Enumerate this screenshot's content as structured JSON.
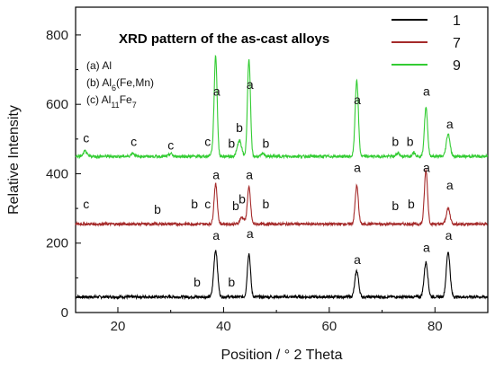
{
  "chart_data": {
    "type": "line",
    "title": "XRD pattern of the as-cast alloys",
    "xlabel": "Position / ° 2 Theta",
    "ylabel": "Relative Intensity",
    "xlim": [
      12,
      90
    ],
    "ylim": [
      0,
      880
    ],
    "xticks": [
      "20",
      "40",
      "60",
      "80"
    ],
    "yticks": [
      "0",
      "200",
      "400",
      "600",
      "800"
    ],
    "phase_legend": [
      {
        "prefix": "(a) ",
        "text": "Al"
      },
      {
        "prefix": "(b) ",
        "text": "Al6(Fe,Mn)",
        "parts": [
          [
            "Al",
            0
          ],
          [
            "6",
            -1
          ],
          [
            "(Fe,Mn)",
            0
          ]
        ]
      },
      {
        "prefix": "(c) ",
        "text": "Al11Fe7",
        "parts": [
          [
            "Al",
            0
          ],
          [
            "11",
            -1
          ],
          [
            "Fe",
            0
          ],
          [
            "7",
            -1
          ]
        ]
      }
    ],
    "legend_position": "top-right",
    "series": [
      {
        "name": "1",
        "color": "#000000",
        "baseline": 45,
        "noise": 4,
        "peaks": [
          {
            "x": 38.5,
            "height": 135,
            "width": 0.35
          },
          {
            "x": 44.8,
            "height": 125,
            "width": 0.3
          },
          {
            "x": 65.2,
            "height": 75,
            "width": 0.35
          },
          {
            "x": 78.3,
            "height": 100,
            "width": 0.35
          },
          {
            "x": 82.5,
            "height": 130,
            "width": 0.35
          }
        ],
        "labels": [
          {
            "text": "a",
            "x": 38.6,
            "y": 210
          },
          {
            "text": "a",
            "x": 45.0,
            "y": 215
          },
          {
            "text": "a",
            "x": 65.3,
            "y": 140
          },
          {
            "text": "a",
            "x": 78.4,
            "y": 175
          },
          {
            "text": "a",
            "x": 82.6,
            "y": 210
          },
          {
            "text": "b",
            "x": 35.0,
            "y": 75
          },
          {
            "text": "b",
            "x": 41.5,
            "y": 75
          }
        ]
      },
      {
        "name": "7",
        "color": "#a52a2a",
        "baseline": 255,
        "noise": 4,
        "peaks": [
          {
            "x": 38.5,
            "height": 115,
            "width": 0.3
          },
          {
            "x": 43.5,
            "height": 20,
            "width": 0.4
          },
          {
            "x": 44.8,
            "height": 105,
            "width": 0.3
          },
          {
            "x": 65.2,
            "height": 110,
            "width": 0.3
          },
          {
            "x": 78.3,
            "height": 155,
            "width": 0.3
          },
          {
            "x": 82.5,
            "height": 45,
            "width": 0.35
          }
        ],
        "labels": [
          {
            "text": "c",
            "x": 14.0,
            "y": 300
          },
          {
            "text": "b",
            "x": 27.5,
            "y": 285
          },
          {
            "text": "b",
            "x": 34.5,
            "y": 300
          },
          {
            "text": "c",
            "x": 37.0,
            "y": 300
          },
          {
            "text": "a",
            "x": 38.6,
            "y": 385
          },
          {
            "text": "b",
            "x": 42.3,
            "y": 295
          },
          {
            "text": "b",
            "x": 43.5,
            "y": 315
          },
          {
            "text": "a",
            "x": 44.9,
            "y": 385
          },
          {
            "text": "b",
            "x": 48.0,
            "y": 300
          },
          {
            "text": "a",
            "x": 65.3,
            "y": 405
          },
          {
            "text": "b",
            "x": 72.5,
            "y": 295
          },
          {
            "text": "b",
            "x": 75.5,
            "y": 300
          },
          {
            "text": "a",
            "x": 78.4,
            "y": 405
          },
          {
            "text": "a",
            "x": 82.8,
            "y": 355
          }
        ]
      },
      {
        "name": "9",
        "color": "#33cc33",
        "baseline": 450,
        "noise": 4,
        "peaks": [
          {
            "x": 13.8,
            "height": 15,
            "width": 0.3
          },
          {
            "x": 22.8,
            "height": 10,
            "width": 0.3
          },
          {
            "x": 30.0,
            "height": 8,
            "width": 0.3
          },
          {
            "x": 37.8,
            "height": 10,
            "width": 0.3
          },
          {
            "x": 38.5,
            "height": 290,
            "width": 0.28
          },
          {
            "x": 43.0,
            "height": 45,
            "width": 0.4
          },
          {
            "x": 44.8,
            "height": 280,
            "width": 0.28
          },
          {
            "x": 47.5,
            "height": 8,
            "width": 0.3
          },
          {
            "x": 65.2,
            "height": 220,
            "width": 0.3
          },
          {
            "x": 73.0,
            "height": 10,
            "width": 0.3
          },
          {
            "x": 76.0,
            "height": 12,
            "width": 0.3
          },
          {
            "x": 78.3,
            "height": 140,
            "width": 0.3
          },
          {
            "x": 82.5,
            "height": 65,
            "width": 0.35
          }
        ],
        "labels": [
          {
            "text": "c",
            "x": 14.0,
            "y": 490
          },
          {
            "text": "c",
            "x": 23.0,
            "y": 480
          },
          {
            "text": "c",
            "x": 30.0,
            "y": 470
          },
          {
            "text": "c",
            "x": 37.0,
            "y": 480
          },
          {
            "text": "a",
            "x": 38.7,
            "y": 625
          },
          {
            "text": "b",
            "x": 41.5,
            "y": 475
          },
          {
            "text": "b",
            "x": 43.0,
            "y": 520
          },
          {
            "text": "a",
            "x": 45.0,
            "y": 645
          },
          {
            "text": "b",
            "x": 48.0,
            "y": 475
          },
          {
            "text": "a",
            "x": 65.3,
            "y": 600
          },
          {
            "text": "b",
            "x": 72.5,
            "y": 480
          },
          {
            "text": "b",
            "x": 75.3,
            "y": 480
          },
          {
            "text": "a",
            "x": 78.4,
            "y": 625
          },
          {
            "text": "a",
            "x": 82.8,
            "y": 530
          }
        ]
      }
    ]
  }
}
